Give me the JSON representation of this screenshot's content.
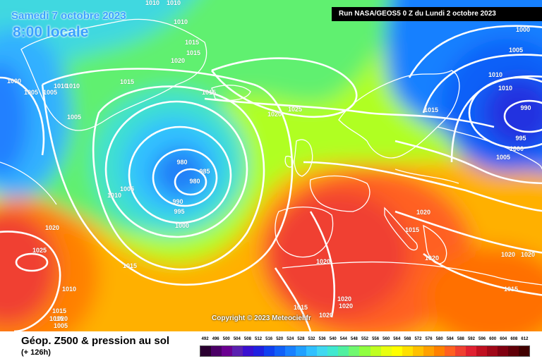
{
  "header": {
    "date": "Samedi 7 octobre 2023",
    "time": "8:00 locale",
    "run": "Run NASA/GEOS5 0 Z du Lundi 2 octobre 2023"
  },
  "copyright": "Copyright © 2023 Meteociel.fr",
  "legend": {
    "title": "Géop. Z500 & pression au sol",
    "subtitle": "(+ 126h)",
    "ticks": [
      "492",
      "496",
      "500",
      "504",
      "508",
      "512",
      "516",
      "520",
      "524",
      "528",
      "532",
      "536",
      "540",
      "544",
      "548",
      "552",
      "556",
      "560",
      "564",
      "568",
      "572",
      "576",
      "580",
      "584",
      "588",
      "592",
      "596",
      "600",
      "604",
      "608",
      "612"
    ],
    "colors": [
      "#2a0030",
      "#4b0066",
      "#6a0090",
      "#5a20b0",
      "#3a10d0",
      "#2020e0",
      "#1040f0",
      "#1060f8",
      "#1880ff",
      "#20a0ff",
      "#30c0ff",
      "#40d8f0",
      "#40e8d0",
      "#50f0a0",
      "#70f870",
      "#90ff40",
      "#c0ff20",
      "#e8ff10",
      "#ffff00",
      "#ffe000",
      "#ffc000",
      "#ffa000",
      "#ff8000",
      "#ff6020",
      "#f04030",
      "#e02030",
      "#c01020",
      "#a00818",
      "#800010",
      "#600008",
      "#400000"
    ]
  },
  "isobars": [
    "1010",
    "1010",
    "1010",
    "1015",
    "1015",
    "1020",
    "1015",
    "1000",
    "1005",
    "1005",
    "1010",
    "1010",
    "1015",
    "1005",
    "1015",
    "1020",
    "1025",
    "980",
    "985",
    "980",
    "990",
    "995",
    "1000",
    "1005",
    "1010",
    "1020",
    "1025",
    "1015",
    "1015",
    "1020",
    "1020",
    "1015",
    "1020",
    "1020",
    "1020",
    "1015",
    "1010",
    "1000",
    "1005",
    "1010",
    "990",
    "995",
    "1000",
    "1005",
    "1015",
    "1020",
    "1020",
    "1020",
    "1015",
    "1010",
    "1005",
    "1020"
  ],
  "colors": {
    "title_blue": "#3aa0ff",
    "isobar": "#ffffff",
    "coastline": "#ffffff"
  }
}
